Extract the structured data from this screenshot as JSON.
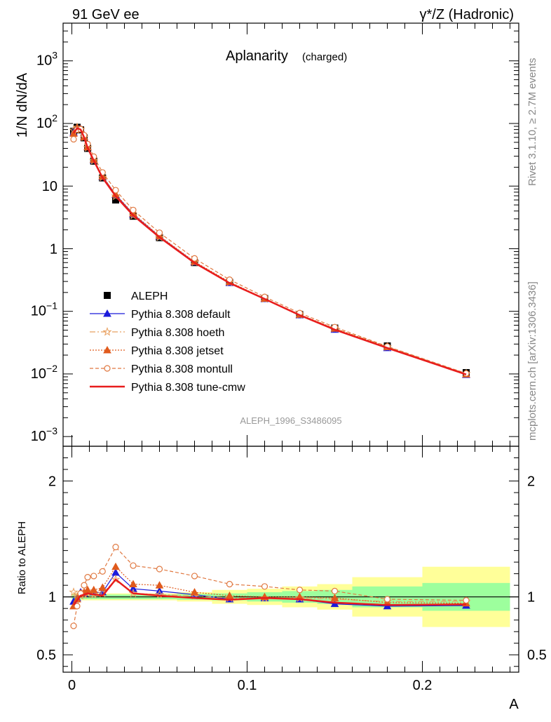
{
  "header": {
    "left": "91 GeV ee",
    "right": "γ*/Z (Hadronic)"
  },
  "side_labels": {
    "rivet": "Rivet 3.1.10, ≥ 2.7M events",
    "mcplots": "mcplots.cern.ch [arXiv:1306.3436]"
  },
  "colors": {
    "aleph": "#000000",
    "default": "#1a1adb",
    "hoeth": "#e8a060",
    "jetset": "#e05a1c",
    "montull": "#e07840",
    "cmw": "#e81c1c",
    "band_inner": "#9dff9d",
    "band_outer": "#ffff99"
  },
  "chart_data": [
    {
      "type": "line",
      "panel": "main",
      "title": "Aplanarity",
      "subtitle": "(charged)",
      "ylabel": "1/N dN/dA",
      "yscale": "log",
      "ylim": [
        0.0007,
        4000
      ],
      "xlim": [
        -0.005,
        0.255
      ],
      "analysis_id": "ALEPH_1996_S3486095",
      "legend_position": "bottom-left",
      "y_tick_labels": [
        "10^-3",
        "10^-2",
        "10^-1",
        "1",
        "10",
        "10^2",
        "10^3"
      ],
      "data": {
        "name": "ALEPH",
        "x": [
          0.001,
          0.003,
          0.005,
          0.007,
          0.009,
          0.0125,
          0.0175,
          0.025,
          0.035,
          0.05,
          0.07,
          0.09,
          0.11,
          0.13,
          0.15,
          0.18,
          0.225
        ],
        "y": [
          75,
          87,
          79,
          59,
          40,
          25,
          13.5,
          6.0,
          3.3,
          1.5,
          0.6,
          0.29,
          0.16,
          0.089,
          0.054,
          0.028,
          0.0105
        ]
      },
      "series": [
        {
          "name": "Pythia 8.308 default",
          "style": "line-triangle",
          "x": [
            0.001,
            0.003,
            0.005,
            0.007,
            0.009,
            0.0125,
            0.0175,
            0.025,
            0.035,
            0.05,
            0.07,
            0.09,
            0.11,
            0.13,
            0.15,
            0.18,
            0.225
          ],
          "y": [
            72,
            86,
            82,
            61,
            42,
            26,
            14.1,
            7.3,
            3.55,
            1.57,
            0.61,
            0.285,
            0.158,
            0.087,
            0.051,
            0.026,
            0.0097
          ]
        },
        {
          "name": "Pythia 8.308 hoeth",
          "style": "dashdot-star",
          "x": [
            0.001,
            0.003,
            0.005,
            0.007,
            0.009,
            0.0125,
            0.0175,
            0.025,
            0.035,
            0.05,
            0.07,
            0.09,
            0.11,
            0.13,
            0.15,
            0.18,
            0.225
          ],
          "y": [
            78,
            87,
            80,
            60,
            41,
            25.5,
            13.8,
            6.9,
            3.4,
            1.53,
            0.61,
            0.29,
            0.158,
            0.088,
            0.053,
            0.027,
            0.0101
          ]
        },
        {
          "name": "Pythia 8.308 jetset",
          "style": "dotted-triangle",
          "x": [
            0.001,
            0.003,
            0.005,
            0.007,
            0.009,
            0.0125,
            0.0175,
            0.025,
            0.035,
            0.05,
            0.07,
            0.09,
            0.11,
            0.13,
            0.15,
            0.18,
            0.225
          ],
          "y": [
            69,
            85,
            81,
            61,
            42,
            26.5,
            14.3,
            7.4,
            3.65,
            1.6,
            0.62,
            0.295,
            0.16,
            0.089,
            0.053,
            0.027,
            0.0099
          ]
        },
        {
          "name": "Pythia 8.308 montull",
          "style": "dashed-open-circle",
          "x": [
            0.001,
            0.003,
            0.005,
            0.007,
            0.009,
            0.0125,
            0.0175,
            0.025,
            0.035,
            0.05,
            0.07,
            0.09,
            0.11,
            0.13,
            0.15,
            0.18,
            0.225
          ],
          "y": [
            56,
            80,
            81,
            65,
            47,
            29.5,
            16.5,
            8.6,
            4.15,
            1.8,
            0.7,
            0.32,
            0.17,
            0.094,
            0.056,
            0.0275,
            0.0102
          ]
        },
        {
          "name": "Pythia 8.308 tune-cmw",
          "style": "solid",
          "x": [
            0.001,
            0.003,
            0.005,
            0.007,
            0.009,
            0.0125,
            0.0175,
            0.025,
            0.035,
            0.05,
            0.07,
            0.09,
            0.11,
            0.13,
            0.15,
            0.18,
            0.225
          ],
          "y": [
            70,
            84,
            80,
            60,
            41,
            25.5,
            13.6,
            6.9,
            3.4,
            1.52,
            0.595,
            0.283,
            0.158,
            0.087,
            0.051,
            0.026,
            0.0098
          ]
        }
      ]
    },
    {
      "type": "line",
      "panel": "ratio",
      "ylabel": "Ratio to ALEPH",
      "xlabel": "A",
      "ylim": [
        0.35,
        2.3
      ],
      "xlim": [
        -0.005,
        0.255
      ],
      "x_tick_labels": [
        "0",
        "0.1",
        "0.2"
      ],
      "y_tick_labels": [
        "0.5",
        "1",
        "2"
      ],
      "bands": {
        "edges": [
          0,
          0.002,
          0.004,
          0.006,
          0.008,
          0.01,
          0.015,
          0.02,
          0.03,
          0.04,
          0.06,
          0.08,
          0.1,
          0.12,
          0.14,
          0.16,
          0.2,
          0.25
        ],
        "inner": [
          0.02,
          0.02,
          0.02,
          0.02,
          0.02,
          0.02,
          0.02,
          0.02,
          0.02,
          0.02,
          0.025,
          0.03,
          0.04,
          0.05,
          0.06,
          0.09,
          0.12
        ],
        "outer": [
          0.03,
          0.03,
          0.03,
          0.03,
          0.03,
          0.03,
          0.03,
          0.03,
          0.03,
          0.03,
          0.04,
          0.06,
          0.07,
          0.09,
          0.11,
          0.17,
          0.26
        ]
      },
      "series": [
        {
          "name": "Pythia 8.308 default",
          "x": [
            0.001,
            0.003,
            0.005,
            0.007,
            0.009,
            0.0125,
            0.0175,
            0.025,
            0.035,
            0.05,
            0.07,
            0.09,
            0.11,
            0.13,
            0.15,
            0.18,
            0.225
          ],
          "y": [
            0.96,
            0.99,
            1.04,
            1.03,
            1.05,
            1.04,
            1.04,
            1.21,
            1.07,
            1.05,
            1.02,
            0.98,
            0.99,
            0.98,
            0.94,
            0.92,
            0.925
          ]
        },
        {
          "name": "Pythia 8.308 hoeth",
          "x": [
            0.001,
            0.003,
            0.005,
            0.007,
            0.009,
            0.0125,
            0.0175,
            0.025,
            0.035,
            0.05,
            0.07,
            0.09,
            0.11,
            0.13,
            0.15,
            0.18,
            0.225
          ],
          "y": [
            1.04,
            1.0,
            1.01,
            1.02,
            1.03,
            1.02,
            1.03,
            1.15,
            1.03,
            1.02,
            1.01,
            0.99,
            0.99,
            0.99,
            0.98,
            0.96,
            0.96
          ]
        },
        {
          "name": "Pythia 8.308 jetset",
          "x": [
            0.001,
            0.003,
            0.005,
            0.007,
            0.009,
            0.0125,
            0.0175,
            0.025,
            0.035,
            0.05,
            0.07,
            0.09,
            0.11,
            0.13,
            0.15,
            0.18,
            0.225
          ],
          "y": [
            0.92,
            0.98,
            1.03,
            1.04,
            1.06,
            1.06,
            1.08,
            1.26,
            1.11,
            1.1,
            1.04,
            1.01,
            1.0,
            1.0,
            0.99,
            0.95,
            0.945
          ]
        },
        {
          "name": "Pythia 8.308 montull",
          "x": [
            0.001,
            0.003,
            0.005,
            0.007,
            0.009,
            0.0125,
            0.0175,
            0.025,
            0.035,
            0.05,
            0.07,
            0.09,
            0.11,
            0.13,
            0.15,
            0.18,
            0.225
          ],
          "y": [
            0.75,
            0.92,
            1.03,
            1.1,
            1.17,
            1.18,
            1.22,
            1.43,
            1.27,
            1.24,
            1.18,
            1.11,
            1.09,
            1.06,
            1.05,
            0.98,
            0.97
          ]
        },
        {
          "name": "Pythia 8.308 tune-cmw",
          "x": [
            0.001,
            0.003,
            0.005,
            0.007,
            0.009,
            0.0125,
            0.0175,
            0.025,
            0.035,
            0.05,
            0.07,
            0.09,
            0.11,
            0.13,
            0.15,
            0.18,
            0.225
          ],
          "y": [
            0.93,
            0.97,
            1.01,
            1.02,
            1.03,
            1.02,
            1.01,
            1.15,
            1.03,
            1.01,
            0.99,
            0.975,
            0.99,
            0.98,
            0.95,
            0.93,
            0.935
          ]
        }
      ]
    }
  ]
}
